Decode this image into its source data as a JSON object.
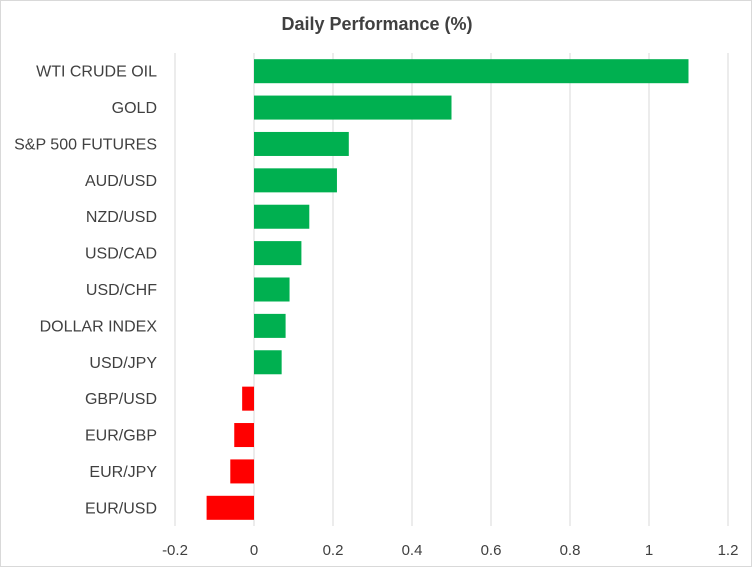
{
  "chart_data": {
    "type": "bar",
    "orientation": "horizontal",
    "title": "Daily Performance  (%)",
    "xlabel": "",
    "ylabel": "",
    "categories": [
      "WTI CRUDE OIL",
      "GOLD",
      "S&P 500 FUTURES",
      "AUD/USD",
      "NZD/USD",
      "USD/CAD",
      "USD/CHF",
      "DOLLAR INDEX",
      "USD/JPY",
      "GBP/USD",
      "EUR/GBP",
      "EUR/JPY",
      "EUR/USD"
    ],
    "values": [
      1.1,
      0.5,
      0.24,
      0.21,
      0.14,
      0.12,
      0.09,
      0.08,
      0.07,
      -0.03,
      -0.05,
      -0.06,
      -0.12
    ],
    "xlim": [
      -0.2,
      1.2
    ],
    "xticks": [
      -0.2,
      0,
      0.2,
      0.4,
      0.6,
      0.8,
      1,
      1.2
    ],
    "xtick_labels": [
      "-0.2",
      "0",
      "0.2",
      "0.4",
      "0.6",
      "0.8",
      "1",
      "1.2"
    ],
    "grid": "vertical",
    "legend": "none",
    "colors": {
      "positive": "#00b050",
      "negative": "#ff0000",
      "grid": "#d9d9d9",
      "text": "#404040"
    }
  }
}
